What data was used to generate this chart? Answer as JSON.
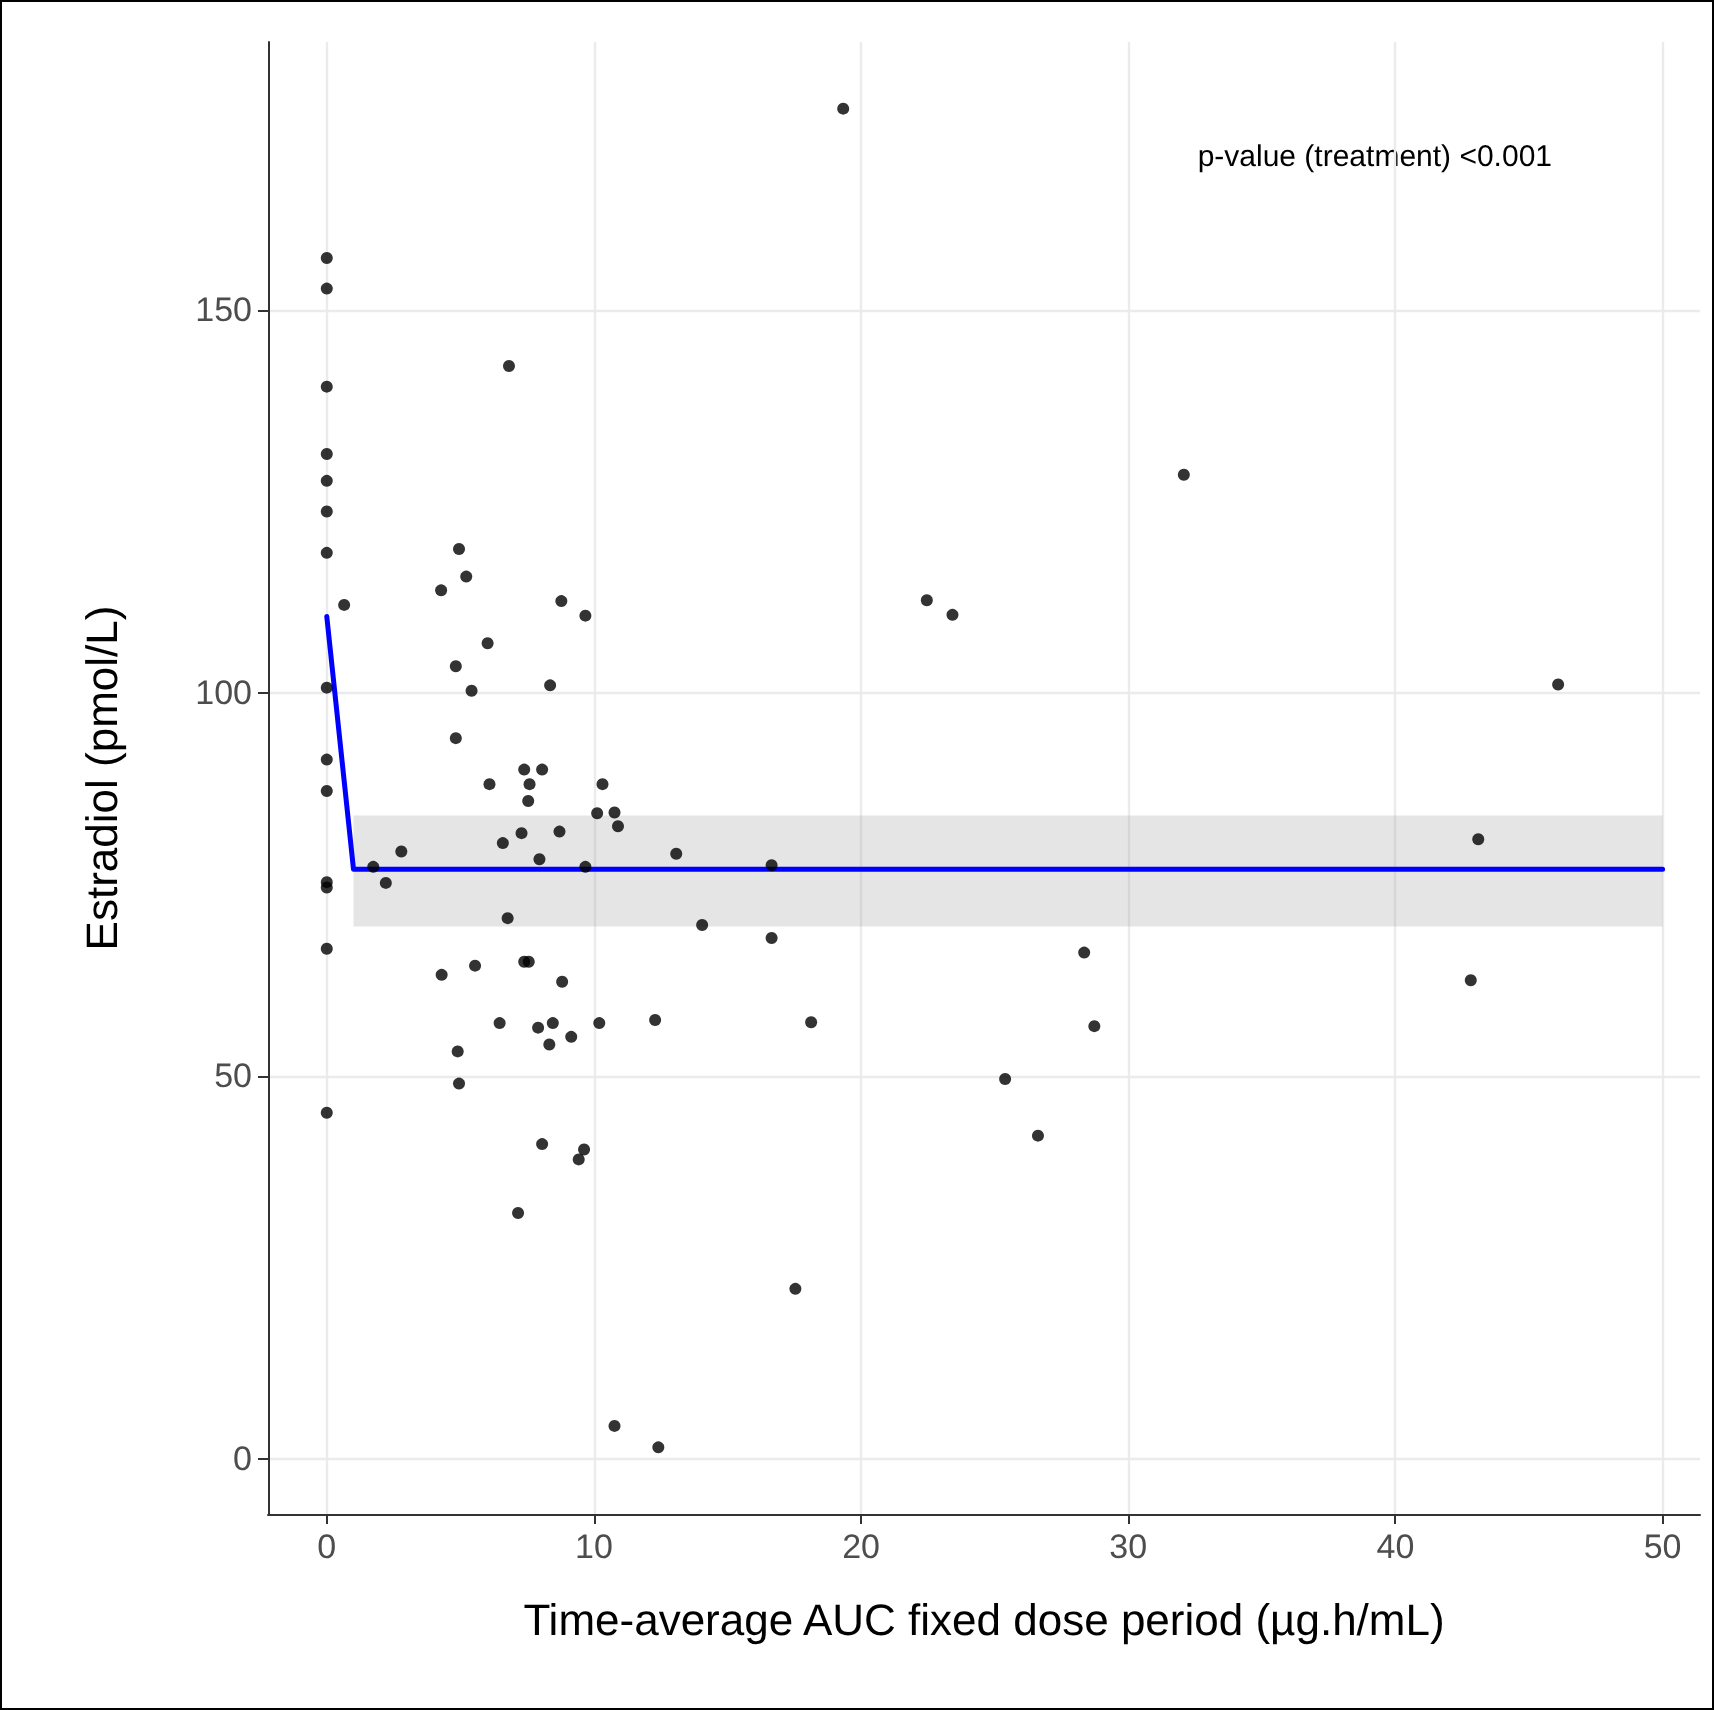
{
  "chart_data": {
    "type": "scatter",
    "xlabel": "Time-average AUC fixed dose period (µg.h/mL)",
    "ylabel": "Estradiol (pmol/L)",
    "annotations": [
      "p-value (treatment) <0.001"
    ],
    "xlim": [
      -2.2,
      51.4
    ],
    "ylim": [
      -7.2,
      185
    ],
    "xticks": [
      0,
      10,
      20,
      30,
      40,
      50
    ],
    "yticks": [
      0,
      50,
      100,
      150
    ],
    "grid": true,
    "series": [
      {
        "type": "scatter",
        "marker": "circle",
        "color": "#000000",
        "x": [
          0,
          0,
          0,
          0,
          0,
          0,
          0,
          0.65,
          0,
          0,
          0,
          0,
          0,
          0,
          0,
          6.82,
          4.95,
          5.22,
          4.28,
          8.78,
          9.68,
          6.02,
          4.83,
          5.42,
          8.36,
          4.83,
          7.39,
          8.06,
          6.09,
          7.59,
          10.32,
          7.54,
          10.12,
          10.77,
          10.9,
          7.29,
          8.71,
          6.59,
          2.79,
          13.08,
          7.96,
          1.74,
          9.68,
          2.21,
          6.77,
          14.05,
          4.3,
          5.55,
          7.39,
          7.56,
          8.81,
          6.47,
          7.91,
          8.46,
          8.33,
          9.15,
          10.2,
          12.29,
          4.9,
          4.95,
          8.06,
          9.63,
          9.43,
          7.16,
          10.77,
          12.41,
          19.33,
          32.08,
          22.46,
          23.42,
          46.09,
          43.1,
          16.65,
          16.65,
          28.35,
          42.82,
          18.13,
          28.73,
          25.39,
          26.62,
          17.54
        ],
        "values": [
          156.8,
          152.8,
          140,
          131.2,
          127.7,
          123.7,
          118.3,
          111.5,
          100.7,
          91.3,
          87.2,
          75.3,
          74.6,
          66.6,
          45.2,
          142.7,
          118.8,
          115.2,
          113.4,
          112,
          110.1,
          106.5,
          103.5,
          100.3,
          101,
          94.1,
          90,
          90,
          88.1,
          88.1,
          88.1,
          85.9,
          84.3,
          84.4,
          82.6,
          81.7,
          81.9,
          80.4,
          79.3,
          79,
          78.3,
          77.3,
          77.3,
          75.2,
          70.6,
          69.7,
          63.2,
          64.4,
          64.9,
          64.9,
          62.3,
          56.9,
          56.3,
          56.9,
          54.1,
          55.1,
          56.9,
          57.3,
          53.2,
          49,
          41.1,
          40.4,
          39.1,
          32.1,
          4.3,
          1.5,
          176.3,
          128.5,
          112.1,
          110.2,
          101.1,
          80.9,
          77.5,
          68,
          66.1,
          62.5,
          57,
          56.5,
          49.6,
          42.2,
          22.2
        ]
      },
      {
        "type": "line",
        "marker": "none",
        "line_style": "solid",
        "color": "#0000ff",
        "x": [
          0,
          1,
          50
        ],
        "values": [
          110,
          77,
          77
        ],
        "lower": [
          null,
          69.5,
          69.5
        ],
        "upper": [
          null,
          84,
          84
        ]
      }
    ]
  }
}
